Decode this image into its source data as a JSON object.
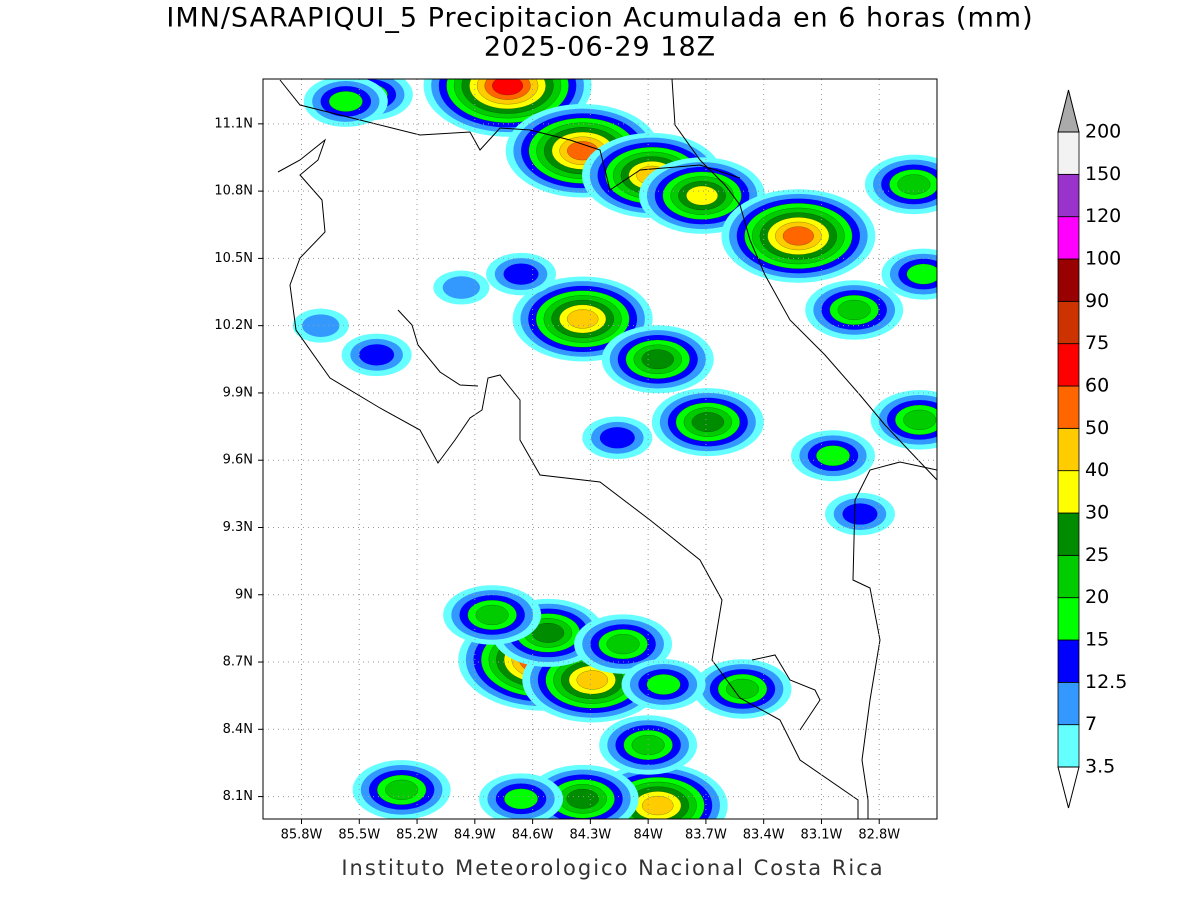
{
  "chart_data": {
    "type": "map",
    "title": "IMN/SARAPIQUI_5 Precipitacion Acumulada en 6 horas (mm)",
    "subtitle": "2025-06-29 18Z",
    "footer": "Instituto Meteorologico Nacional Costa Rica",
    "xlim": [
      -86.0,
      -82.5
    ],
    "ylim": [
      8.0,
      11.3
    ],
    "grid": true,
    "xticks": [
      {
        "value": -85.8,
        "label": "85.8W"
      },
      {
        "value": -85.5,
        "label": "85.5W"
      },
      {
        "value": -85.2,
        "label": "85.2W"
      },
      {
        "value": -84.9,
        "label": "84.9W"
      },
      {
        "value": -84.6,
        "label": "84.6W"
      },
      {
        "value": -84.3,
        "label": "84.3W"
      },
      {
        "value": -84.0,
        "label": "84W"
      },
      {
        "value": -83.7,
        "label": "83.7W"
      },
      {
        "value": -83.4,
        "label": "83.4W"
      },
      {
        "value": -83.1,
        "label": "83.1W"
      },
      {
        "value": -82.8,
        "label": "82.8W"
      }
    ],
    "yticks": [
      {
        "value": 8.1,
        "label": "8.1N"
      },
      {
        "value": 8.4,
        "label": "8.4N"
      },
      {
        "value": 8.7,
        "label": "8.7N"
      },
      {
        "value": 9.0,
        "label": "9N"
      },
      {
        "value": 9.3,
        "label": "9.3N"
      },
      {
        "value": 9.6,
        "label": "9.6N"
      },
      {
        "value": 9.9,
        "label": "9.9N"
      },
      {
        "value": 10.2,
        "label": "10.2N"
      },
      {
        "value": 10.5,
        "label": "10.5N"
      },
      {
        "value": 10.8,
        "label": "10.8N"
      },
      {
        "value": 11.1,
        "label": "11.1N"
      }
    ],
    "levels": [
      3.5,
      7,
      12.5,
      15,
      20,
      25,
      30,
      40,
      50,
      60,
      75,
      90,
      100,
      120,
      150,
      200
    ],
    "colors": [
      "#66ffff",
      "#3399ff",
      "#0000ff",
      "#00ff00",
      "#00cc00",
      "#008c00",
      "#ffff00",
      "#ffcc00",
      "#ff6600",
      "#ff0000",
      "#cc3300",
      "#990000",
      "#ff00ff",
      "#9933cc",
      "#f2f2f2"
    ],
    "under_color": "#ffffff",
    "over_color": "#aaaaaa",
    "cells": [
      {
        "lon": -84.73,
        "lat": 11.27,
        "value": 60
      },
      {
        "lon": -84.34,
        "lat": 10.98,
        "value": 50
      },
      {
        "lon": -83.98,
        "lat": 10.87,
        "value": 40
      },
      {
        "lon": -83.72,
        "lat": 10.78,
        "value": 30
      },
      {
        "lon": -83.22,
        "lat": 10.6,
        "value": 50
      },
      {
        "lon": -84.34,
        "lat": 10.23,
        "value": 40
      },
      {
        "lon": -83.95,
        "lat": 10.05,
        "value": 25
      },
      {
        "lon": -83.69,
        "lat": 9.77,
        "value": 25
      },
      {
        "lon": -84.55,
        "lat": 8.71,
        "value": 60
      },
      {
        "lon": -84.29,
        "lat": 8.62,
        "value": 40
      },
      {
        "lon": -84.52,
        "lat": 8.83,
        "value": 25
      },
      {
        "lon": -84.81,
        "lat": 8.91,
        "value": 20
      },
      {
        "lon": -83.95,
        "lat": 8.06,
        "value": 40
      },
      {
        "lon": -84.34,
        "lat": 8.09,
        "value": 25
      },
      {
        "lon": -85.28,
        "lat": 8.13,
        "value": 20
      },
      {
        "lon": -82.62,
        "lat": 10.83,
        "value": 20
      },
      {
        "lon": -85.44,
        "lat": 11.23,
        "value": 15
      },
      {
        "lon": -85.57,
        "lat": 11.2,
        "value": 15
      },
      {
        "lon": -82.57,
        "lat": 10.43,
        "value": 15
      },
      {
        "lon": -83.04,
        "lat": 9.62,
        "value": 15
      },
      {
        "lon": -82.9,
        "lat": 9.36,
        "value": 12.5
      },
      {
        "lon": -85.41,
        "lat": 10.07,
        "value": 12.5
      },
      {
        "lon": -84.16,
        "lat": 9.7,
        "value": 12.5
      },
      {
        "lon": -84.13,
        "lat": 8.78,
        "value": 20
      },
      {
        "lon": -83.51,
        "lat": 8.58,
        "value": 20
      },
      {
        "lon": -83.92,
        "lat": 8.6,
        "value": 15
      },
      {
        "lon": -84.0,
        "lat": 8.33,
        "value": 20
      },
      {
        "lon": -84.66,
        "lat": 8.09,
        "value": 15
      },
      {
        "lon": -84.66,
        "lat": 10.43,
        "value": 12.5
      },
      {
        "lon": -84.97,
        "lat": 10.37,
        "value": 7
      },
      {
        "lon": -82.59,
        "lat": 9.78,
        "value": 20
      },
      {
        "lon": -82.93,
        "lat": 10.27,
        "value": 20
      },
      {
        "lon": -85.7,
        "lat": 10.2,
        "value": 7
      }
    ]
  }
}
